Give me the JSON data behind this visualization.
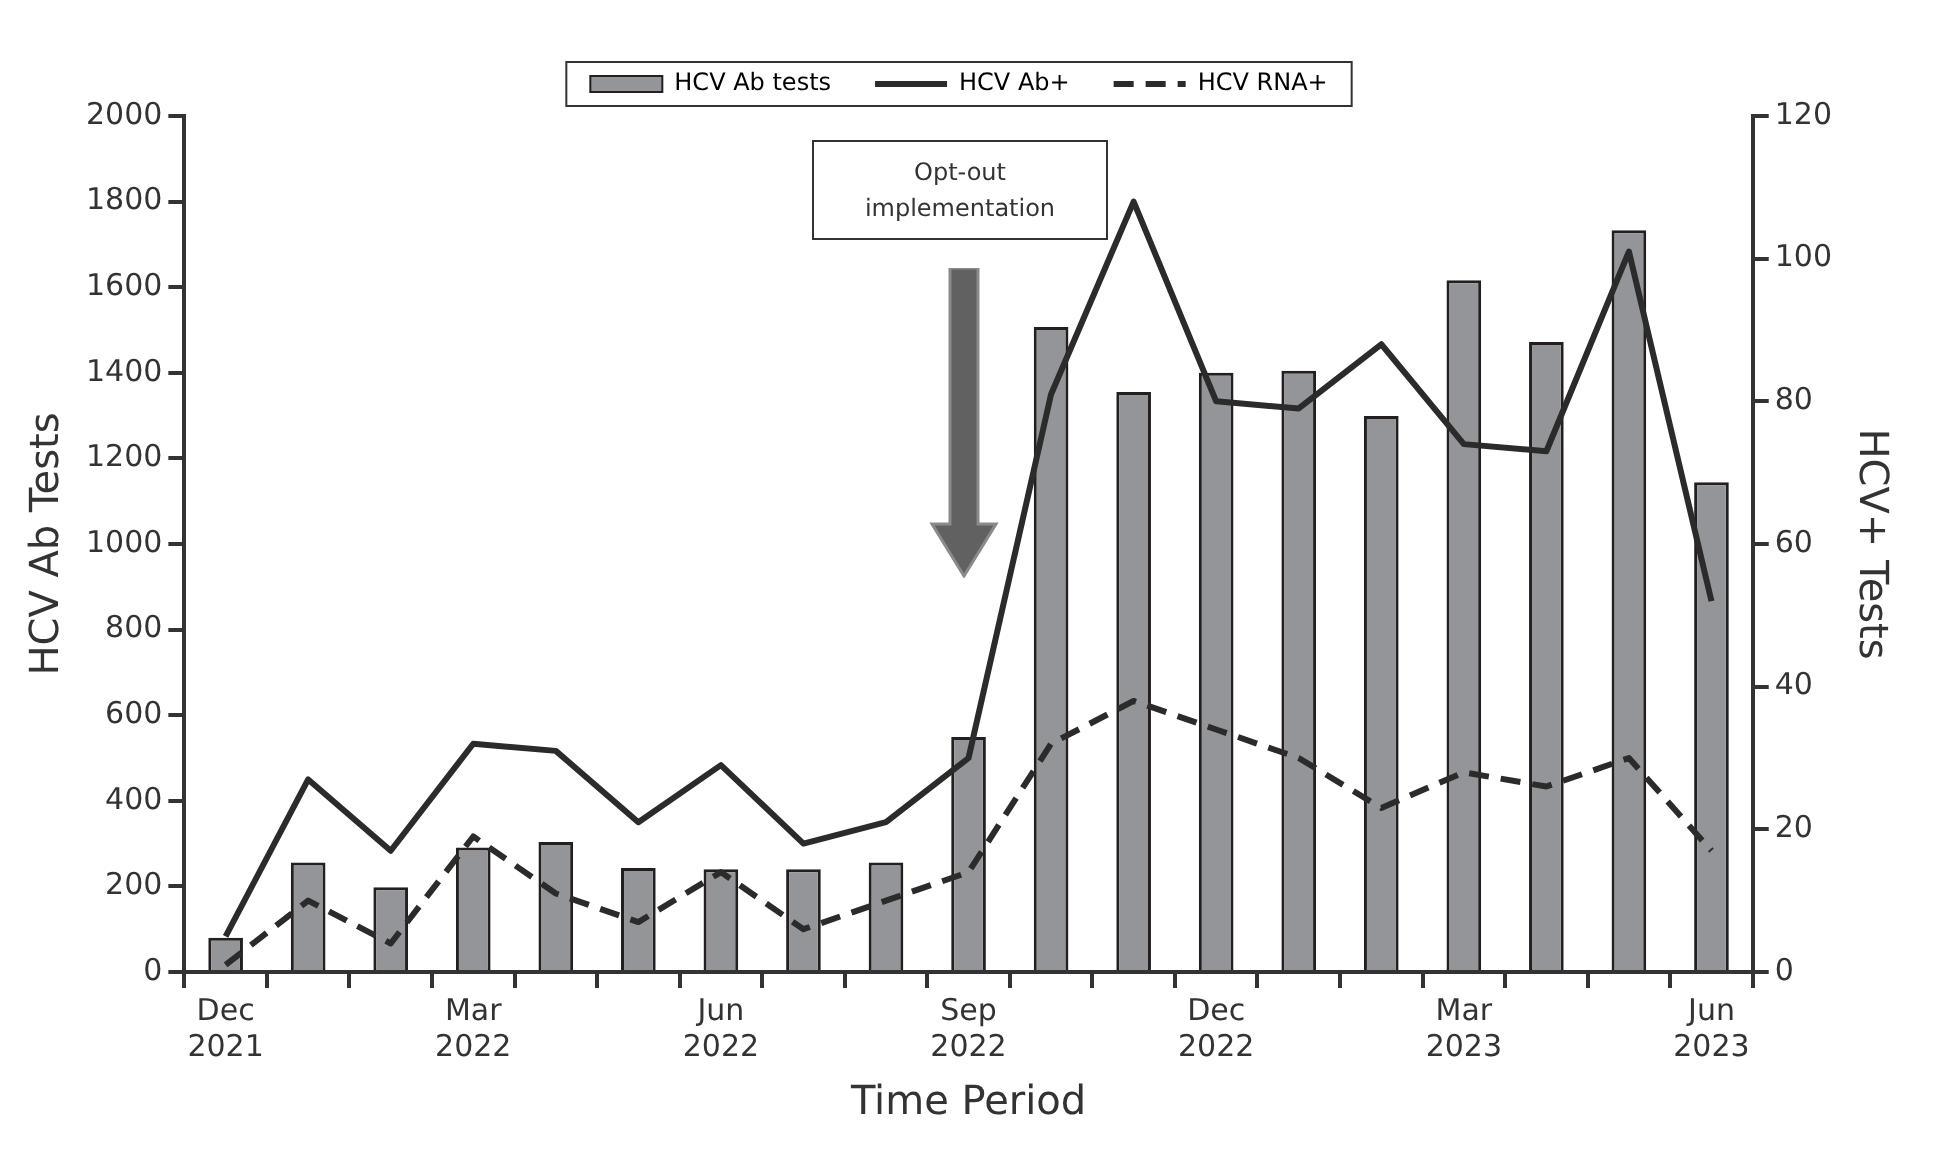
{
  "chart_data": {
    "type": "bar",
    "xlabel": "Time Period",
    "ylabel": "HCV Ab Tests",
    "y2label": "HCV+ Tests",
    "categories": [
      "Dec 2021",
      null,
      null,
      "Mar 2022",
      null,
      null,
      "Jun 2022",
      null,
      null,
      "Sep 2022",
      null,
      null,
      "Dec 2022",
      null,
      null,
      "Mar 2023",
      null,
      null,
      "Jun 2023"
    ],
    "series": [
      {
        "name": "HCV Ab tests",
        "color": "#939598",
        "values": [
          80,
          256,
          198,
          291,
          304,
          243,
          240,
          240,
          256,
          549,
          1507,
          1355,
          1400,
          1405,
          1299,
          1616,
          1472,
          1733,
          1144
        ]
      },
      {
        "name": "HCV Ab+",
        "type": "line",
        "axis": "y2",
        "color": "#2b2b2b",
        "line_style": "solid",
        "values": [
          5,
          27,
          17,
          32,
          31,
          21,
          29,
          18,
          21,
          30,
          81,
          108,
          80,
          79,
          88,
          74,
          73,
          101,
          52
        ]
      },
      {
        "name": "HCV RNA+",
        "type": "line",
        "axis": "y2",
        "color": "#2b2b2b",
        "line_style": "dashed",
        "values": [
          1,
          10,
          4,
          19,
          11,
          7,
          14,
          6,
          10,
          14,
          32,
          38,
          34,
          30,
          23,
          28,
          26,
          30,
          17
        ]
      }
    ],
    "ylim": [
      0,
      2000
    ],
    "yticks": [
      0,
      200,
      400,
      600,
      800,
      1000,
      1200,
      1400,
      1600,
      1800,
      2000
    ],
    "y2lim": [
      0,
      120
    ],
    "y2ticks": [
      0,
      20,
      40,
      60,
      80,
      100,
      120
    ],
    "grid": false,
    "legend": "top",
    "marker": "none",
    "annotations": [
      "Opt-out\nimplementation"
    ]
  }
}
